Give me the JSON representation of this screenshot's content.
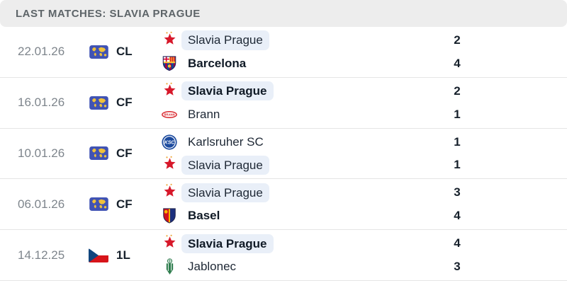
{
  "header": {
    "title": "LAST MATCHES: SLAVIA PRAGUE"
  },
  "colors": {
    "header_bg": "#ededed",
    "header_text": "#5d6468",
    "date_text": "#7e858c",
    "team_text": "#1e2835",
    "score_text": "#16202b",
    "highlight_pill_bg": "#e9eff8",
    "divider": "#e5e5e5",
    "slavia_red": "#d7182a",
    "czech_flag_blue": "#11457e",
    "czech_flag_red": "#d7141a",
    "map_icon_bg": "#4053b4",
    "map_icon_land": "#f0c13a"
  },
  "matches": [
    {
      "date": "22.01.26",
      "competition": "CL",
      "competition_icon": "world-map",
      "teams": [
        {
          "name": "Slavia Prague",
          "logo": "slavia-prague",
          "score": "2",
          "bold": false,
          "highlighted": true
        },
        {
          "name": "Barcelona",
          "logo": "barcelona",
          "score": "4",
          "bold": true,
          "highlighted": false
        }
      ]
    },
    {
      "date": "16.01.26",
      "competition": "CF",
      "competition_icon": "world-map",
      "teams": [
        {
          "name": "Slavia Prague",
          "logo": "slavia-prague",
          "score": "2",
          "bold": true,
          "highlighted": true
        },
        {
          "name": "Brann",
          "logo": "brann",
          "score": "1",
          "bold": false,
          "highlighted": false
        }
      ]
    },
    {
      "date": "10.01.26",
      "competition": "CF",
      "competition_icon": "world-map",
      "teams": [
        {
          "name": "Karlsruher SC",
          "logo": "karlsruher-sc",
          "score": "1",
          "bold": false,
          "highlighted": false
        },
        {
          "name": "Slavia Prague",
          "logo": "slavia-prague",
          "score": "1",
          "bold": false,
          "highlighted": true
        }
      ]
    },
    {
      "date": "06.01.26",
      "competition": "CF",
      "competition_icon": "world-map",
      "teams": [
        {
          "name": "Slavia Prague",
          "logo": "slavia-prague",
          "score": "3",
          "bold": false,
          "highlighted": true
        },
        {
          "name": "Basel",
          "logo": "basel",
          "score": "4",
          "bold": true,
          "highlighted": false
        }
      ]
    },
    {
      "date": "14.12.25",
      "competition": "1L",
      "competition_icon": "czech-flag",
      "teams": [
        {
          "name": "Slavia Prague",
          "logo": "slavia-prague",
          "score": "4",
          "bold": true,
          "highlighted": true
        },
        {
          "name": "Jablonec",
          "logo": "jablonec",
          "score": "3",
          "bold": false,
          "highlighted": false
        }
      ]
    }
  ]
}
